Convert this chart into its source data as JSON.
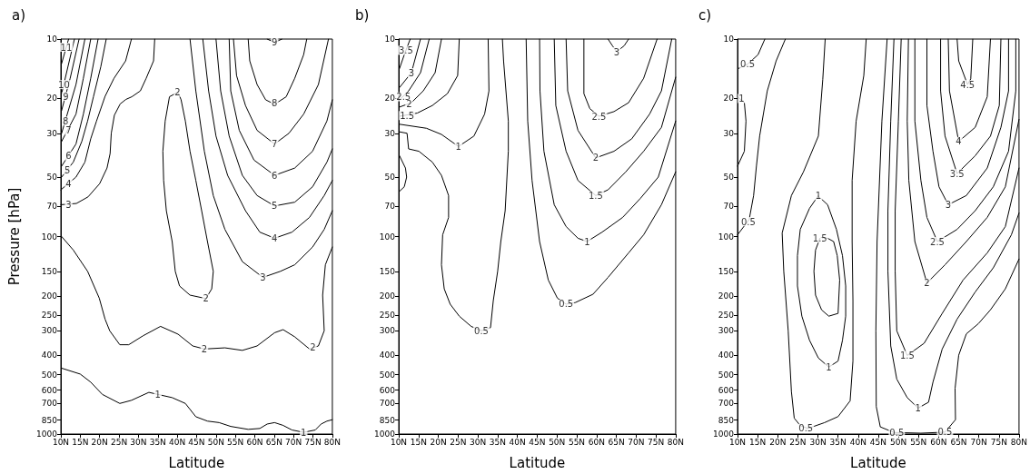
{
  "chart_data": [
    {
      "type": "line",
      "title": "a)",
      "xlabel": "Latitude",
      "ylabel": "Pressure [hPa]",
      "marker": "none",
      "log": "y",
      "xlim": [
        10,
        80
      ],
      "xticks": [
        {
          "value": 10,
          "label": "10N"
        },
        {
          "value": 15,
          "label": "15N"
        },
        {
          "value": 20,
          "label": "20N"
        },
        {
          "value": 25,
          "label": "25N"
        },
        {
          "value": 30,
          "label": "30N"
        },
        {
          "value": 35,
          "label": "35N"
        },
        {
          "value": 40,
          "label": "40N"
        },
        {
          "value": 45,
          "label": "45N"
        },
        {
          "value": 50,
          "label": "50N"
        },
        {
          "value": 55,
          "label": "55N"
        },
        {
          "value": 60,
          "label": "60N"
        },
        {
          "value": 65,
          "label": "65N"
        },
        {
          "value": 70,
          "label": "70N"
        },
        {
          "value": 75,
          "label": "75N"
        },
        {
          "value": 80,
          "label": "80N"
        }
      ],
      "ylim": [
        1000,
        10
      ],
      "yticks": [
        10,
        20,
        30,
        50,
        70,
        100,
        150,
        200,
        250,
        300,
        400,
        500,
        600,
        700,
        850,
        1000
      ],
      "series": [
        {
          "color": "#000000",
          "x": [
            10.2,
            15,
            17.7,
            20.7,
            25.2,
            28.2,
            32.7,
            35,
            38.7,
            42.1,
            44.8,
            47.8,
            50.8,
            53.8,
            58.3,
            61.3,
            63.2,
            65.1,
            67.3,
            69.6,
            72.6,
            75.6,
            77.1,
            78.6,
            80
          ],
          "values": [
            464,
            497,
            546,
            630,
            700,
            675,
            615,
            630,
            654,
            700,
            817,
            860,
            875,
            915,
            947,
            937,
            890,
            875,
            904,
            954,
            980,
            954,
            890,
            860,
            846
          ]
        },
        {
          "color": "#000000",
          "x": [
            40.1,
            38,
            36.9,
            36.3,
            36.5,
            37.2,
            38.7,
            39.5,
            40.6,
            43.3,
            47.4,
            48.9,
            49.3,
            47.8,
            46.3,
            44.8,
            43.3,
            42.1,
            41,
            40.3
          ],
          "values": [
            18.6,
            19.6,
            26,
            37,
            52,
            74,
            106,
            150,
            178,
            198,
            206,
            184,
            150,
            106,
            74,
            52,
            37,
            26,
            20.3,
            18.8
          ]
        },
        {
          "color": "#000000",
          "x": [
            10.2,
            13.2,
            16.9,
            19.9,
            21.4,
            22.6,
            25.2,
            27.5,
            31.2,
            35.7,
            40.2,
            44,
            47,
            52.3,
            56.8,
            60.6,
            65.1,
            67.3,
            70.3,
            74.1,
            76.4,
            77.9,
            77.5,
            78.2,
            80
          ],
          "values": [
            100,
            117,
            150,
            205,
            262,
            300,
            353,
            353,
            318,
            285,
            312,
            358,
            371,
            366,
            377,
            358,
            307,
            296,
            322,
            371,
            358,
            300,
            198,
            139,
            113
          ]
        },
        {
          "color": "#000000",
          "x": [
            34.2,
            33.9,
            32,
            30.5,
            28.3,
            26.8,
            25.3,
            23.8,
            23,
            22.7,
            21.9,
            20,
            17,
            14,
            10
          ],
          "values": [
            10,
            12.9,
            15.8,
            18.3,
            19.6,
            20.2,
            21.3,
            24.3,
            30,
            38,
            45,
            54,
            63,
            68,
            69
          ]
        },
        {
          "color": "#000000",
          "x": [
            43.3,
            44.8,
            47,
            49.3,
            52.3,
            56.8,
            62.1,
            66.6,
            70.3,
            74.9,
            77.9,
            80
          ],
          "values": [
            10,
            18.3,
            37,
            62,
            92,
            134,
            161,
            150,
            139,
            113,
            92,
            74
          ]
        },
        {
          "color": "#000000",
          "x": [
            28.2,
            26.7,
            23.7,
            21.4,
            19.2,
            17.7,
            16.2,
            13.9,
            10
          ],
          "values": [
            10,
            12.9,
            15.8,
            19.5,
            26,
            32,
            42,
            50,
            58
          ]
        },
        {
          "color": "#000000",
          "x": [
            46.6,
            48.1,
            50,
            53,
            57.6,
            61.3,
            65.1,
            69.6,
            74.1,
            77.9,
            80
          ],
          "values": [
            10,
            18.3,
            31,
            49,
            74,
            95,
            102,
            95,
            80,
            62,
            52
          ]
        },
        {
          "color": "#000000",
          "x": [
            21.7,
            20.3,
            18.4,
            16.9,
            15.4,
            13.2,
            10.2
          ],
          "values": [
            10,
            13.8,
            19.6,
            26,
            33,
            42,
            50
          ]
        },
        {
          "color": "#000000",
          "x": [
            50,
            51.2,
            53.4,
            56.8,
            60.6,
            65.1,
            70.3,
            74.9,
            78.6,
            80
          ],
          "values": [
            10,
            18.3,
            31,
            49,
            62,
            70,
            67,
            56,
            42,
            36
          ]
        },
        {
          "color": "#000000",
          "x": [
            19.6,
            17.7,
            15.8,
            13.9,
            10.2
          ],
          "values": [
            10,
            15.8,
            24,
            34,
            44
          ]
        },
        {
          "color": "#000000",
          "x": [
            53.4,
            53.8,
            56,
            59.8,
            65.1,
            70.3,
            74.9,
            78.6,
            80
          ],
          "values": [
            10,
            18.3,
            29,
            41,
            49,
            45,
            37,
            26,
            20.3
          ]
        },
        {
          "color": "#000000",
          "x": [
            17.7,
            15.8,
            13.9,
            10.2
          ],
          "values": [
            10,
            15.8,
            24,
            33
          ]
        },
        {
          "color": "#000000",
          "x": [
            54.5,
            55.3,
            57.6,
            60.6,
            65.1,
            68.8,
            72.6,
            76.4,
            79
          ],
          "values": [
            10,
            15.3,
            21.7,
            29,
            34,
            30,
            24,
            17,
            10
          ]
        },
        {
          "color": "#000000",
          "x": [
            16.2,
            13.9,
            10.2
          ],
          "values": [
            10,
            17,
            30
          ]
        },
        {
          "color": "#000000",
          "x": [
            58.3,
            58.7,
            60.6,
            62.8,
            65.1,
            68.1,
            70.3,
            72.6,
            73.4
          ],
          "values": [
            10,
            12.9,
            17,
            20.3,
            21.4,
            19.6,
            15.8,
            12,
            10
          ]
        },
        {
          "color": "#000000",
          "x": [
            14.7,
            12.4,
            10.2
          ],
          "values": [
            10,
            15.8,
            23
          ]
        },
        {
          "color": "#000000",
          "x": [
            63.2,
            65.1,
            67
          ],
          "values": [
            10,
            10.4,
            10
          ]
        },
        {
          "color": "#000000",
          "x": [
            13.5,
            10.2
          ],
          "values": [
            10,
            18.9
          ]
        },
        {
          "color": "#000000",
          "x": [
            12,
            10.2
          ],
          "values": [
            10,
            13.3
          ]
        }
      ],
      "annotations": [
        {
          "text": "11",
          "x": 11.4,
          "y": 11
        },
        {
          "text": "10",
          "x": 10.8,
          "y": 17
        },
        {
          "text": "9",
          "x": 11.3,
          "y": 19.5
        },
        {
          "text": "8",
          "x": 11.2,
          "y": 26
        },
        {
          "text": "7",
          "x": 12,
          "y": 29
        },
        {
          "text": "6",
          "x": 12,
          "y": 39
        },
        {
          "text": "5",
          "x": 11.7,
          "y": 46
        },
        {
          "text": "4",
          "x": 12,
          "y": 54
        },
        {
          "text": "3",
          "x": 12,
          "y": 69
        },
        {
          "text": "9",
          "x": 65.1,
          "y": 10.4
        },
        {
          "text": "8",
          "x": 65.1,
          "y": 21
        },
        {
          "text": "7",
          "x": 65.1,
          "y": 34
        },
        {
          "text": "6",
          "x": 65.1,
          "y": 49
        },
        {
          "text": "5",
          "x": 65.1,
          "y": 70
        },
        {
          "text": "4",
          "x": 65.1,
          "y": 102
        },
        {
          "text": "3",
          "x": 62.1,
          "y": 161
        },
        {
          "text": "2",
          "x": 40.1,
          "y": 18.6
        },
        {
          "text": "2",
          "x": 47.4,
          "y": 206
        },
        {
          "text": "2",
          "x": 47,
          "y": 371
        },
        {
          "text": "2",
          "x": 75,
          "y": 365
        },
        {
          "text": "1",
          "x": 35,
          "y": 630
        },
        {
          "text": "1",
          "x": 72.6,
          "y": 980
        }
      ]
    },
    {
      "type": "line",
      "title": "b)",
      "xlabel": "Latitude",
      "marker": "none",
      "log": "y",
      "xlim": [
        10,
        80
      ],
      "xticks": [
        {
          "value": 10,
          "label": "10N"
        },
        {
          "value": 15,
          "label": "15N"
        },
        {
          "value": 20,
          "label": "20N"
        },
        {
          "value": 25,
          "label": "25N"
        },
        {
          "value": 30,
          "label": "30N"
        },
        {
          "value": 35,
          "label": "35N"
        },
        {
          "value": 40,
          "label": "40N"
        },
        {
          "value": 45,
          "label": "45N"
        },
        {
          "value": 50,
          "label": "50N"
        },
        {
          "value": 55,
          "label": "55N"
        },
        {
          "value": 60,
          "label": "60N"
        },
        {
          "value": 65,
          "label": "65N"
        },
        {
          "value": 70,
          "label": "70N"
        },
        {
          "value": 75,
          "label": "75N"
        },
        {
          "value": 80,
          "label": "80N"
        }
      ],
      "ylim": [
        1000,
        10
      ],
      "yticks": [
        10,
        20,
        30,
        50,
        70,
        100,
        150,
        200,
        250,
        300,
        400,
        500,
        600,
        700,
        850,
        1000
      ],
      "series": [
        {
          "color": "#000000",
          "x": [
            10.2,
            12.1,
            12.5,
            15.1,
            18.5,
            20.8,
            22.6,
            22.6,
            21.1,
            20.8,
            21.5,
            23,
            25.3,
            28.3,
            30.9,
            33.2,
            33.9,
            35,
            35.8,
            36.9,
            37.7,
            37.7,
            36.5,
            36.2
          ],
          "values": [
            29.5,
            30,
            36,
            37,
            42,
            49,
            62,
            80,
            98,
            139,
            184,
            220,
            253,
            285,
            300,
            289,
            211,
            150,
            106,
            74,
            37,
            26,
            12.9,
            10
          ]
        },
        {
          "color": "#000000",
          "x": [
            42.2,
            42.6,
            43.7,
            45.6,
            47.8,
            50.1,
            52.3,
            54.6,
            59.1,
            62.9,
            68.1,
            71.9,
            76.4,
            80
          ],
          "values": [
            10,
            26,
            52,
            106,
            166,
            205,
            220,
            216,
            196,
            161,
            121,
            98,
            69,
            47
          ]
        },
        {
          "color": "#000000",
          "x": [
            10.2,
            17,
            20.8,
            25.1,
            29,
            31.7,
            32.8,
            32.6
          ],
          "values": [
            27,
            28.3,
            30.4,
            35,
            31,
            24,
            18.3,
            10
          ]
        },
        {
          "color": "#000000",
          "x": [
            45.6,
            45.7,
            46.7,
            49.3,
            52.3,
            55.3,
            57.6,
            61.4,
            66.6,
            71.1,
            75.6,
            80
          ],
          "values": [
            10,
            18.3,
            37,
            69,
            89,
            102,
            106,
            95,
            80,
            64,
            50,
            26
          ]
        },
        {
          "color": "#000000",
          "x": [
            25.3,
            24.9,
            22.3,
            18.5,
            14.7,
            10.2
          ],
          "values": [
            10,
            15.3,
            18.9,
            21.7,
            23.7,
            24.6
          ]
        },
        {
          "color": "#000000",
          "x": [
            49.3,
            49.7,
            52.3,
            55.3,
            59.8,
            62.9,
            67.4,
            71.9,
            76.4,
            80
          ],
          "values": [
            10,
            21.7,
            37,
            52,
            62,
            58,
            47,
            37,
            28,
            15.6
          ]
        },
        {
          "color": "#000000",
          "x": [
            20.8,
            19.2,
            16.2,
            13.2,
            10.2
          ],
          "values": [
            10,
            14.8,
            18.3,
            21,
            22.1
          ]
        },
        {
          "color": "#000000",
          "x": [
            52.3,
            52.7,
            55.3,
            59.8,
            64.4,
            68.9,
            73.4,
            76.4,
            79
          ],
          "values": [
            10,
            18.3,
            29,
            40,
            37,
            32,
            24,
            18.3,
            10
          ]
        },
        {
          "color": "#000000",
          "x": [
            17.7,
            15.5,
            12.5,
            10.2
          ],
          "values": [
            10,
            14.8,
            18.3,
            20.3
          ]
        },
        {
          "color": "#000000",
          "x": [
            56.8,
            56.8,
            58.3,
            60.6,
            64.4,
            68.1,
            71.9,
            75.3
          ],
          "values": [
            10,
            18.9,
            22.5,
            24.6,
            23.3,
            21,
            15.8,
            10
          ]
        },
        {
          "color": "#000000",
          "x": [
            15.5,
            13.2,
            10.2
          ],
          "values": [
            10,
            14.8,
            17.6
          ]
        },
        {
          "color": "#000000",
          "x": [
            62.9,
            64,
            65.1,
            67,
            68.1
          ],
          "values": [
            10,
            10.8,
            11.6,
            10.8,
            10
          ]
        },
        {
          "color": "#000000",
          "x": [
            12.9,
            11.4,
            10.2
          ],
          "values": [
            10,
            12,
            14.1
          ]
        },
        {
          "color": "#000000",
          "x": [
            10.2,
            11.7,
            12,
            11.4,
            10.2
          ],
          "values": [
            39,
            45,
            50,
            56,
            59
          ]
        }
      ],
      "annotations": [
        {
          "text": "3.5",
          "x": 11.8,
          "y": 11.4
        },
        {
          "text": "3",
          "x": 13.2,
          "y": 14.8
        },
        {
          "text": "2.5",
          "x": 11.2,
          "y": 19.6
        },
        {
          "text": "2",
          "x": 12.6,
          "y": 21.4
        },
        {
          "text": "1.5",
          "x": 12.1,
          "y": 24.4
        },
        {
          "text": "1",
          "x": 25.1,
          "y": 35
        },
        {
          "text": "0.5",
          "x": 30.9,
          "y": 300
        },
        {
          "text": "3",
          "x": 65.1,
          "y": 11.6
        },
        {
          "text": "2.5",
          "x": 60.6,
          "y": 24.6
        },
        {
          "text": "2",
          "x": 59.8,
          "y": 40
        },
        {
          "text": "1.5",
          "x": 59.8,
          "y": 62
        },
        {
          "text": "1",
          "x": 57.6,
          "y": 106
        },
        {
          "text": "0.5",
          "x": 52.3,
          "y": 220
        }
      ]
    },
    {
      "type": "line",
      "title": "c)",
      "xlabel": "Latitude",
      "marker": "none",
      "log": "y",
      "xlim": [
        10,
        80
      ],
      "xticks": [
        {
          "value": 10,
          "label": "10N"
        },
        {
          "value": 15,
          "label": "15N"
        },
        {
          "value": 20,
          "label": "20N"
        },
        {
          "value": 25,
          "label": "25N"
        },
        {
          "value": 30,
          "label": "30N"
        },
        {
          "value": 35,
          "label": "35N"
        },
        {
          "value": 40,
          "label": "40N"
        },
        {
          "value": 45,
          "label": "45N"
        },
        {
          "value": 50,
          "label": "50N"
        },
        {
          "value": 55,
          "label": "55N"
        },
        {
          "value": 60,
          "label": "60N"
        },
        {
          "value": 65,
          "label": "65N"
        },
        {
          "value": 70,
          "label": "70N"
        },
        {
          "value": 75,
          "label": "75N"
        },
        {
          "value": 80,
          "label": "80N"
        }
      ],
      "ylim": [
        1000,
        10
      ],
      "yticks": [
        10,
        20,
        30,
        50,
        70,
        100,
        150,
        200,
        250,
        300,
        400,
        500,
        600,
        700,
        850,
        1000
      ],
      "series": [
        {
          "color": "#000000",
          "x": [
            16.8,
            15.1,
            12.5,
            10.2
          ],
          "values": [
            10,
            12,
            13.4,
            14.1
          ]
        },
        {
          "color": "#000000",
          "x": [
            21.9,
            19.6,
            17.4,
            15.5,
            14.7,
            14,
            12.9,
            10
          ],
          "values": [
            10,
            12.9,
            18.3,
            31,
            44,
            62,
            82,
            98
          ]
        },
        {
          "color": "#000000",
          "x": [
            31.8,
            31.2,
            30.1,
            26.4,
            23.4,
            21.1,
            21.5,
            22.6,
            23.4,
            24.1,
            25.6,
            27.5,
            31.6,
            35,
            38,
            38.7,
            38.7,
            38.5,
            38.5,
            39.5,
            41.4,
            42
          ],
          "values": [
            10,
            16,
            31,
            47,
            62,
            96,
            150,
            300,
            609,
            831,
            906,
            937,
            876,
            816,
            679,
            427,
            211,
            106,
            52,
            26,
            15.3,
            10
          ]
        },
        {
          "color": "#000000",
          "x": [
            47.2,
            45.9,
            44.7,
            44.4,
            44.5,
            45.5,
            48.9,
            55.6,
            61.6,
            64.2,
            64.1,
            65,
            66.9,
            69.9,
            72.9,
            76.6,
            80
          ],
          "values": [
            10,
            26,
            106,
            300,
            726,
            920,
            982,
            990,
            978,
            846,
            587,
            399,
            311,
            276,
            235,
            184,
            130
          ]
        },
        {
          "color": "#000000",
          "x": [
            10,
            11.7,
            12.1,
            11.7,
            10
          ],
          "values": [
            19.6,
            21,
            26,
            37,
            44
          ]
        },
        {
          "color": "#000000",
          "x": [
            30.1,
            27.9,
            25.6,
            24.9,
            24.9,
            26,
            27.9,
            30.1,
            32.7,
            35,
            36.1,
            36.9,
            36.9,
            36.1,
            34.6,
            32.4,
            30.1
          ],
          "values": [
            62,
            72,
            92,
            125,
            178,
            253,
            335,
            412,
            458,
            427,
            335,
            253,
            178,
            125,
            92,
            69,
            62.5
          ]
        },
        {
          "color": "#000000",
          "x": [
            48.9,
            48.1,
            47.4,
            47.4,
            48.1,
            49.6,
            52.2,
            54.9,
            57.5,
            58.6,
            60.9,
            64.6,
            69.1,
            73.6,
            78.1,
            80
          ],
          "values": [
            10,
            26,
            74,
            150,
            358,
            527,
            654,
            739,
            690,
            546,
            371,
            262,
            191,
            144,
            98,
            76
          ]
        },
        {
          "color": "#000000",
          "x": [
            30.5,
            29.4,
            29,
            29.4,
            30.9,
            32.7,
            35,
            35.4,
            34.8,
            33.9,
            32.4,
            30.8
          ],
          "values": [
            102,
            117,
            150,
            198,
            235,
            253,
            245,
            166,
            125,
            106,
            102,
            101
          ]
        },
        {
          "color": "#000000",
          "x": [
            50.7,
            50,
            49.2,
            49.2,
            49.6,
            52.2,
            56.4,
            60.9,
            66.1,
            72.1,
            76.6,
            80
          ],
          "values": [
            10,
            26,
            74,
            150,
            300,
            400,
            347,
            245,
            166,
            121,
            89,
            45
          ]
        },
        {
          "color": "#000000",
          "x": [
            52.5,
            52.2,
            52.6,
            54.1,
            57.1,
            61.6,
            66.9,
            72.1,
            76.6,
            80
          ],
          "values": [
            10,
            26,
            52,
            106,
            172,
            139,
            106,
            80,
            56,
            25.5
          ]
        },
        {
          "color": "#000000",
          "x": [
            54.1,
            54.1,
            55.6,
            57.1,
            59.7,
            64.6,
            69.1,
            73.6,
            77.4,
            79.2,
            79.2
          ],
          "values": [
            10,
            26,
            52,
            80,
            106,
            92,
            74,
            56,
            37,
            18.3,
            10
          ]
        },
        {
          "color": "#000000",
          "x": [
            57.1,
            57.1,
            58.6,
            60.1,
            62.4,
            66.9,
            72.1,
            75.5,
            77.4,
            77.4
          ],
          "values": [
            10,
            21.7,
            37,
            56,
            69,
            62,
            45,
            28,
            18.3,
            10
          ]
        },
        {
          "color": "#000000",
          "x": [
            60.5,
            60.5,
            61.6,
            64.6,
            69.1,
            72.9,
            75.1,
            75.5
          ],
          "values": [
            10,
            18.3,
            31,
            48,
            39,
            31,
            21.7,
            10
          ]
        },
        {
          "color": "#000000",
          "x": [
            62.4,
            62.7,
            65,
            69.1,
            72.1,
            72.9
          ],
          "values": [
            10,
            18.3,
            33,
            28,
            19.6,
            10
          ]
        },
        {
          "color": "#000000",
          "x": [
            64.6,
            65,
            67.2,
            68,
            68.5
          ],
          "values": [
            10,
            12.9,
            17,
            15.9,
            10
          ]
        }
      ],
      "annotations": [
        {
          "text": "0.5",
          "x": 12.5,
          "y": 13.4
        },
        {
          "text": "1",
          "x": 11,
          "y": 20
        },
        {
          "text": "0.5",
          "x": 12.7,
          "y": 84
        },
        {
          "text": "0.5",
          "x": 27,
          "y": 937
        },
        {
          "text": "0.5",
          "x": 49.6,
          "y": 982
        },
        {
          "text": "0.5",
          "x": 61.6,
          "y": 978
        },
        {
          "text": "1",
          "x": 30.1,
          "y": 62
        },
        {
          "text": "1.5",
          "x": 30.5,
          "y": 102
        },
        {
          "text": "1",
          "x": 32.7,
          "y": 458
        },
        {
          "text": "1",
          "x": 54.9,
          "y": 739
        },
        {
          "text": "1.5",
          "x": 52.2,
          "y": 400
        },
        {
          "text": "2",
          "x": 57.1,
          "y": 172
        },
        {
          "text": "2.5",
          "x": 59.7,
          "y": 106
        },
        {
          "text": "3",
          "x": 62.4,
          "y": 69
        },
        {
          "text": "3.5",
          "x": 64.6,
          "y": 48
        },
        {
          "text": "4",
          "x": 65,
          "y": 33
        },
        {
          "text": "4.5",
          "x": 67.2,
          "y": 17
        }
      ]
    }
  ]
}
